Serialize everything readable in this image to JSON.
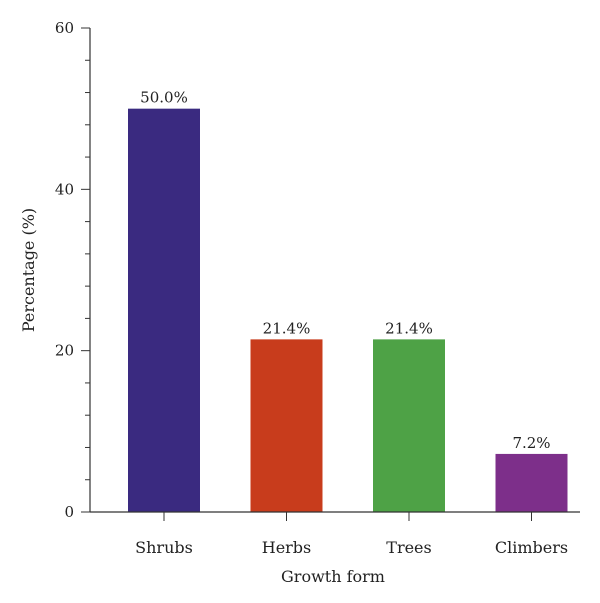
{
  "chart_data": {
    "type": "bar",
    "categories": [
      "Shrubs",
      "Herbs",
      "Trees",
      "Climbers"
    ],
    "values": [
      50.0,
      21.4,
      21.4,
      7.2
    ],
    "data_labels": [
      "50.0%",
      "21.4%",
      "21.4%",
      "7.2%"
    ],
    "colors": [
      "#3a2a80",
      "#c83c1c",
      "#4ea246",
      "#7d2f8a"
    ],
    "xlabel": "Growth form",
    "ylabel": "Percentage (%)",
    "ylim": [
      0,
      60
    ],
    "yticks": [
      0,
      20,
      40,
      60
    ],
    "yticks_minor_step": 4,
    "grid": false,
    "legend": false
  }
}
